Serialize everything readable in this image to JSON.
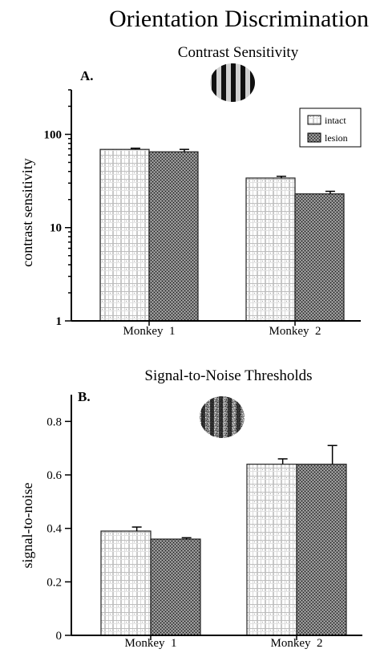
{
  "figure": {
    "title": "Orientation Discrimination"
  },
  "chart_data": [
    {
      "type": "bar",
      "panel": "A.",
      "title": "Contrast Sensitivity",
      "xlabel": "",
      "ylabel": "contrast sensitivity",
      "y_scale": "log",
      "ylim": [
        1,
        300
      ],
      "yticks": [
        {
          "value": 1,
          "label": "1"
        },
        {
          "value": 10,
          "label": "10"
        },
        {
          "value": 100,
          "label": "100"
        }
      ],
      "categories": [
        "Monkey  1",
        "Monkey  2"
      ],
      "series": [
        {
          "name": "intact",
          "values": [
            69,
            34
          ],
          "errors": [
            2,
            1.5
          ]
        },
        {
          "name": "lesion",
          "values": [
            65,
            23
          ],
          "errors": [
            4,
            1.5
          ]
        }
      ],
      "legend": "top-right",
      "grid": false,
      "inset": "grating-stimulus"
    },
    {
      "type": "bar",
      "panel": "B.",
      "title": "Signal-to-Noise Thresholds",
      "xlabel": "",
      "ylabel": "signal-to-noise",
      "y_scale": "linear",
      "ylim": [
        0,
        0.9
      ],
      "yticks": [
        {
          "value": 0,
          "label": "0"
        },
        {
          "value": 0.2,
          "label": "0.2"
        },
        {
          "value": 0.4,
          "label": "0.4"
        },
        {
          "value": 0.6,
          "label": "0.6"
        },
        {
          "value": 0.8,
          "label": "0.8"
        }
      ],
      "categories": [
        "Monkey  1",
        "Monkey  2"
      ],
      "series": [
        {
          "name": "intact",
          "values": [
            0.39,
            0.64
          ],
          "errors": [
            0.015,
            0.02
          ]
        },
        {
          "name": "lesion",
          "values": [
            0.36,
            0.64
          ],
          "errors": [
            0.005,
            0.07
          ]
        }
      ],
      "grid": false,
      "inset": "noisy-grating-stimulus"
    }
  ]
}
